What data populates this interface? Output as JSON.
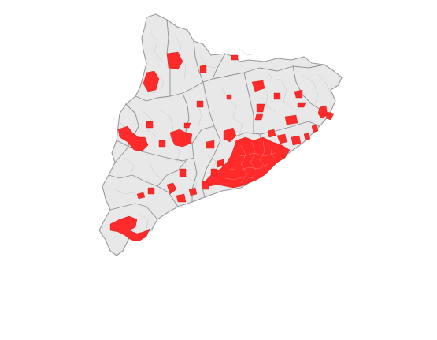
{
  "map": {
    "region": "Catalonia",
    "base_fill": "#e8e8e8",
    "border_color": "#9a9a9a",
    "highlight_color": "#ff2a2a"
  }
}
